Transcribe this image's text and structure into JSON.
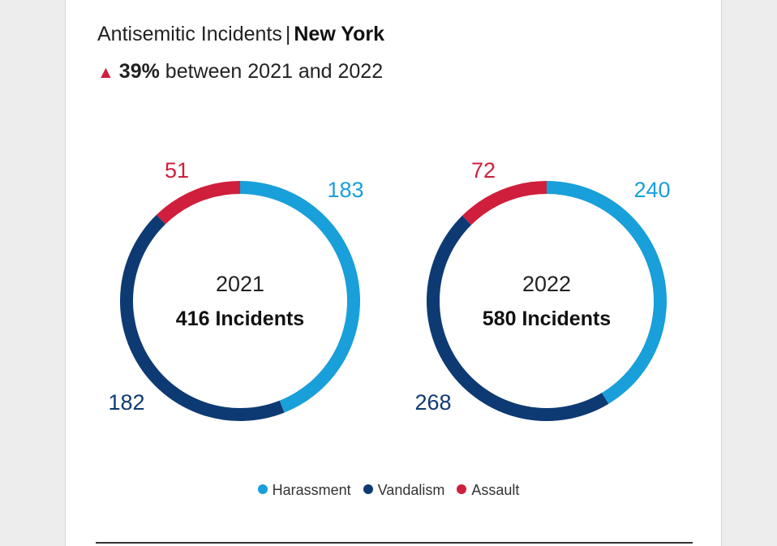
{
  "title": {
    "prefix": "Antisemitic Incidents",
    "separator": "|",
    "location": "New York"
  },
  "subtitle": {
    "triangle": "▲",
    "percent": "39%",
    "text": "between 2021 and 2022"
  },
  "colors": {
    "Harassment": "#199fd9",
    "Vandalism": "#0e3a73",
    "Assault": "#cf1f3c"
  },
  "chart_data": [
    {
      "type": "pie",
      "variant": "donut",
      "center_label": "2021",
      "total_label": "416 Incidents",
      "categories": [
        "Harassment",
        "Vandalism",
        "Assault"
      ],
      "values": [
        183,
        182,
        51
      ]
    },
    {
      "type": "pie",
      "variant": "donut",
      "center_label": "2022",
      "total_label": "580 Incidents",
      "categories": [
        "Harassment",
        "Vandalism",
        "Assault"
      ],
      "values": [
        240,
        268,
        72
      ]
    }
  ],
  "legend": [
    {
      "label": "Harassment",
      "key": "Harassment"
    },
    {
      "label": "Vandalism",
      "key": "Vandalism"
    },
    {
      "label": "Assault",
      "key": "Assault"
    }
  ]
}
